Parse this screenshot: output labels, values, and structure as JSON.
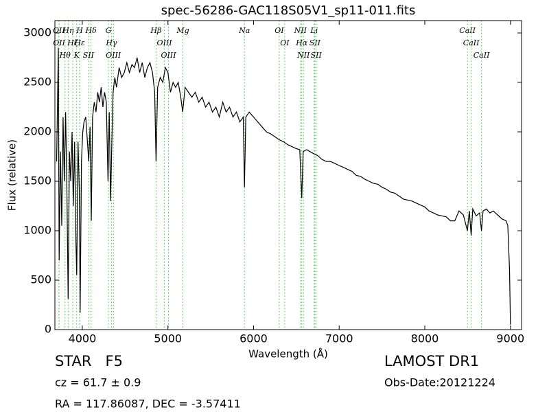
{
  "chart_data": {
    "type": "line",
    "title": "spec-56286-GAC118S05V1_sp11-011.fits",
    "xlabel": "Wavelength (Å)",
    "ylabel": "Flux (relative)",
    "xlim": [
      3680,
      9130
    ],
    "ylim": [
      0,
      3125
    ],
    "xticks": [
      4000,
      5000,
      6000,
      7000,
      8000,
      9000
    ],
    "yticks": [
      0,
      500,
      1000,
      1500,
      2000,
      2500,
      3000
    ],
    "color": "#000000",
    "line_color": "#33cc33",
    "x": [
      3700,
      3720,
      3730,
      3745,
      3760,
      3775,
      3790,
      3805,
      3820,
      3835,
      3850,
      3865,
      3880,
      3895,
      3910,
      3925,
      3935,
      3950,
      3965,
      3975,
      3990,
      4005,
      4020,
      4040,
      4060,
      4075,
      4090,
      4105,
      4120,
      4140,
      4160,
      4180,
      4200,
      4220,
      4240,
      4260,
      4280,
      4300,
      4315,
      4330,
      4345,
      4360,
      4380,
      4400,
      4430,
      4460,
      4490,
      4520,
      4550,
      4580,
      4610,
      4640,
      4670,
      4700,
      4730,
      4760,
      4790,
      4820,
      4845,
      4861,
      4880,
      4910,
      4940,
      4970,
      5000,
      5030,
      5060,
      5090,
      5120,
      5150,
      5172,
      5200,
      5240,
      5280,
      5320,
      5360,
      5400,
      5440,
      5480,
      5520,
      5560,
      5600,
      5640,
      5680,
      5720,
      5760,
      5800,
      5840,
      5880,
      5894,
      5910,
      5950,
      6000,
      6050,
      6100,
      6150,
      6200,
      6250,
      6300,
      6350,
      6400,
      6450,
      6500,
      6540,
      6563,
      6580,
      6620,
      6660,
      6700,
      6750,
      6800,
      6850,
      6900,
      6950,
      7000,
      7050,
      7100,
      7150,
      7200,
      7250,
      7300,
      7350,
      7400,
      7450,
      7500,
      7550,
      7600,
      7650,
      7700,
      7750,
      7800,
      7850,
      7900,
      7950,
      8000,
      8050,
      8100,
      8150,
      8200,
      8250,
      8300,
      8350,
      8400,
      8450,
      8498,
      8520,
      8542,
      8560,
      8600,
      8640,
      8662,
      8680,
      8720,
      8760,
      8800,
      8850,
      8900,
      8950,
      8970,
      8990,
      9000
    ],
    "values": [
      1700,
      2850,
      700,
      1800,
      1050,
      2150,
      1500,
      2200,
      1400,
      310,
      1800,
      1500,
      2000,
      1250,
      1900,
      900,
      550,
      1900,
      1400,
      170,
      1700,
      2000,
      2100,
      2150,
      1900,
      1700,
      2050,
      1100,
      2150,
      2300,
      2200,
      2400,
      2300,
      2450,
      2250,
      2400,
      2300,
      1500,
      2200,
      1300,
      1900,
      2400,
      2550,
      2450,
      2650,
      2550,
      2600,
      2700,
      2600,
      2680,
      2650,
      2750,
      2600,
      2700,
      2550,
      2650,
      2700,
      2600,
      2400,
      1700,
      2450,
      2550,
      2500,
      2650,
      2600,
      2400,
      2500,
      2450,
      2500,
      2350,
      2200,
      2450,
      2400,
      2350,
      2400,
      2300,
      2350,
      2250,
      2300,
      2200,
      2250,
      2150,
      2300,
      2200,
      2250,
      2150,
      2200,
      2100,
      2150,
      1440,
      2150,
      2200,
      2150,
      2100,
      2050,
      2000,
      1980,
      1950,
      1920,
      1900,
      1870,
      1850,
      1830,
      1820,
      1330,
      1800,
      1820,
      1800,
      1780,
      1760,
      1720,
      1700,
      1700,
      1680,
      1660,
      1640,
      1620,
      1600,
      1560,
      1550,
      1520,
      1500,
      1480,
      1470,
      1440,
      1420,
      1390,
      1380,
      1350,
      1320,
      1310,
      1300,
      1280,
      1260,
      1240,
      1200,
      1180,
      1160,
      1150,
      1140,
      1100,
      1100,
      1200,
      1160,
      1000,
      1200,
      950,
      1220,
      1150,
      1180,
      1000,
      1200,
      1220,
      1180,
      1200,
      1160,
      1120,
      1100,
      1050,
      600,
      50
    ],
    "lines": [
      {
        "label": "OII",
        "x": 3727
      },
      {
        "label": "OII",
        "x": 3729
      },
      {
        "label": "Hθ",
        "x": 3798
      },
      {
        "label": "Hη",
        "x": 3835
      },
      {
        "label": "Hζ",
        "x": 3889
      },
      {
        "label": "K",
        "x": 3934
      },
      {
        "label": "H",
        "x": 3969
      },
      {
        "label": "Hε",
        "x": 3970
      },
      {
        "label": "SII",
        "x": 4072
      },
      {
        "label": "Hδ",
        "x": 4102
      },
      {
        "label": "G",
        "x": 4305
      },
      {
        "label": "Hγ",
        "x": 4341
      },
      {
        "label": "OIII",
        "x": 4363
      },
      {
        "label": "Hβ",
        "x": 4861
      },
      {
        "label": "OIII",
        "x": 4959
      },
      {
        "label": "OIII",
        "x": 5007
      },
      {
        "label": "Mg",
        "x": 5175
      },
      {
        "label": "Na",
        "x": 5894
      },
      {
        "label": "OI",
        "x": 6300
      },
      {
        "label": "OI",
        "x": 6364
      },
      {
        "label": "NII",
        "x": 6548
      },
      {
        "label": "Hα",
        "x": 6563
      },
      {
        "label": "NII",
        "x": 6583
      },
      {
        "label": "Li",
        "x": 6708
      },
      {
        "label": "SII",
        "x": 6717
      },
      {
        "label": "SII",
        "x": 6731
      },
      {
        "label": "CaII",
        "x": 8498
      },
      {
        "label": "CaII",
        "x": 8542
      },
      {
        "label": "CaII",
        "x": 8662
      }
    ]
  },
  "info": {
    "object": "STAR   F5",
    "redshift": "cz = 61.7 ± 0.9",
    "coords": "RA = 117.86087, DEC = -3.57411",
    "survey": "LAMOST DR1",
    "date": "Obs-Date:20121224"
  }
}
